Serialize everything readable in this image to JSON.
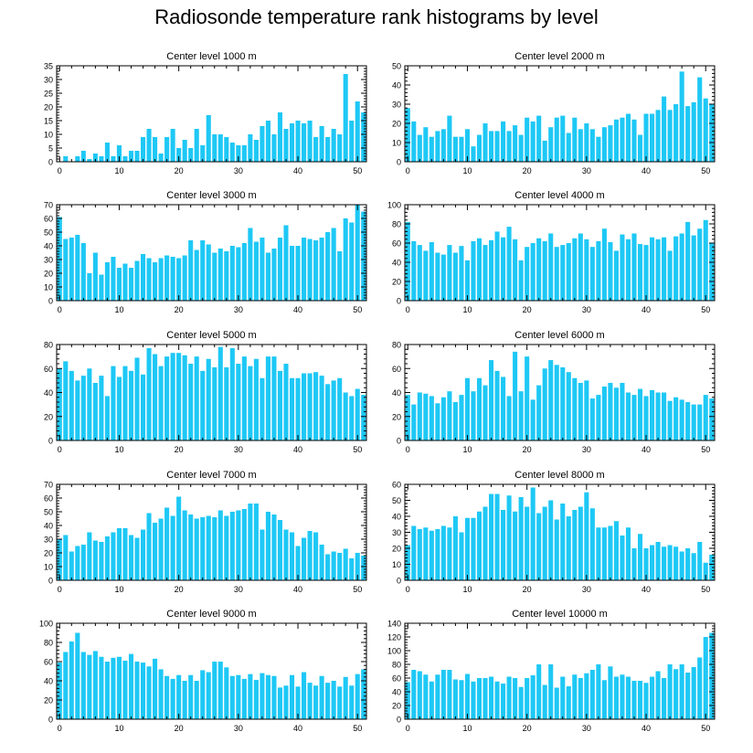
{
  "title": "Radiosonde temperature rank histograms by level",
  "colors": {
    "bar": "#1EC8F5",
    "axis": "#000000"
  },
  "chart_data": [
    {
      "type": "bar",
      "title": "Center level 1000 m",
      "ylim": [
        0,
        35
      ],
      "yticks": [
        0,
        5,
        10,
        15,
        20,
        25,
        30,
        35
      ],
      "xlim": [
        -0.5,
        51.5
      ],
      "xticks": [
        0,
        10,
        20,
        30,
        40,
        50
      ],
      "values": [
        0,
        2,
        0,
        2,
        4,
        1,
        3,
        2,
        7,
        2,
        6,
        2,
        4,
        4,
        9,
        12,
        9,
        3,
        9,
        12,
        5,
        8,
        5,
        12,
        6,
        17,
        10,
        10,
        9,
        7,
        6,
        6,
        10,
        8,
        13,
        15,
        10,
        18,
        12,
        14,
        15,
        14,
        15,
        9,
        13,
        9,
        12,
        10,
        32,
        15,
        22,
        18
      ]
    },
    {
      "type": "bar",
      "title": "Center level 2000 m",
      "ylim": [
        0,
        50
      ],
      "yticks": [
        0,
        10,
        20,
        30,
        40,
        50
      ],
      "xlim": [
        -0.5,
        51.5
      ],
      "xticks": [
        0,
        10,
        20,
        30,
        40,
        50
      ],
      "values": [
        28,
        21,
        14,
        18,
        13,
        16,
        17,
        24,
        13,
        13,
        17,
        8,
        14,
        20,
        16,
        16,
        21,
        16,
        19,
        14,
        23,
        21,
        24,
        11,
        18,
        23,
        24,
        15,
        23,
        17,
        20,
        17,
        13,
        18,
        19,
        22,
        23,
        25,
        22,
        14,
        25,
        25,
        27,
        34,
        27,
        30,
        47,
        29,
        31,
        44,
        33,
        30
      ]
    },
    {
      "type": "bar",
      "title": "Center level 3000 m",
      "ylim": [
        0,
        70
      ],
      "yticks": [
        0,
        10,
        20,
        30,
        40,
        50,
        60,
        70
      ],
      "xlim": [
        -0.5,
        51.5
      ],
      "xticks": [
        0,
        10,
        20,
        30,
        40,
        50
      ],
      "values": [
        61,
        45,
        46,
        48,
        42,
        20,
        35,
        19,
        28,
        32,
        24,
        27,
        24,
        29,
        34,
        31,
        28,
        31,
        33,
        32,
        31,
        33,
        44,
        37,
        44,
        41,
        35,
        38,
        36,
        40,
        39,
        42,
        53,
        43,
        46,
        35,
        38,
        46,
        55,
        40,
        40,
        46,
        45,
        44,
        46,
        50,
        53,
        36,
        60,
        57,
        70,
        65
      ]
    },
    {
      "type": "bar",
      "title": "Center level 4000 m",
      "ylim": [
        0,
        100
      ],
      "yticks": [
        0,
        20,
        40,
        60,
        80,
        100
      ],
      "xlim": [
        -0.5,
        51.5
      ],
      "xticks": [
        0,
        10,
        20,
        30,
        40,
        50
      ],
      "values": [
        82,
        62,
        58,
        52,
        61,
        50,
        48,
        58,
        50,
        57,
        42,
        62,
        65,
        58,
        63,
        72,
        66,
        77,
        64,
        42,
        56,
        60,
        65,
        62,
        70,
        56,
        58,
        60,
        65,
        70,
        64,
        56,
        62,
        75,
        61,
        52,
        69,
        64,
        70,
        59,
        58,
        66,
        64,
        66,
        52,
        67,
        70,
        82,
        68,
        75,
        84,
        60
      ]
    },
    {
      "type": "bar",
      "title": "Center level 5000 m",
      "ylim": [
        0,
        80
      ],
      "yticks": [
        0,
        20,
        40,
        60,
        80
      ],
      "xlim": [
        -0.5,
        51.5
      ],
      "xticks": [
        0,
        10,
        20,
        30,
        40,
        50
      ],
      "values": [
        60,
        66,
        58,
        50,
        54,
        60,
        48,
        54,
        37,
        62,
        53,
        62,
        58,
        69,
        55,
        77,
        72,
        62,
        70,
        73,
        73,
        71,
        64,
        70,
        58,
        68,
        61,
        78,
        61,
        77,
        64,
        70,
        62,
        68,
        52,
        70,
        70,
        58,
        64,
        52,
        52,
        56,
        56,
        57,
        54,
        47,
        50,
        52,
        40,
        37,
        43,
        38
      ]
    },
    {
      "type": "bar",
      "title": "Center level 6000 m",
      "ylim": [
        0,
        80
      ],
      "yticks": [
        0,
        20,
        40,
        60,
        80
      ],
      "xlim": [
        -0.5,
        51.5
      ],
      "xticks": [
        0,
        10,
        20,
        30,
        40,
        50
      ],
      "values": [
        38,
        30,
        40,
        39,
        37,
        31,
        36,
        41,
        32,
        38,
        52,
        41,
        52,
        46,
        67,
        58,
        53,
        37,
        74,
        41,
        70,
        34,
        46,
        60,
        67,
        63,
        61,
        57,
        52,
        48,
        50,
        35,
        38,
        45,
        48,
        44,
        48,
        40,
        38,
        43,
        37,
        42,
        40,
        40,
        33,
        36,
        34,
        32,
        30,
        30,
        38,
        35
      ]
    },
    {
      "type": "bar",
      "title": "Center level 7000 m",
      "ylim": [
        0,
        70
      ],
      "yticks": [
        0,
        10,
        20,
        30,
        40,
        50,
        60,
        70
      ],
      "xlim": [
        -0.5,
        51.5
      ],
      "xticks": [
        0,
        10,
        20,
        30,
        40,
        50
      ],
      "values": [
        30,
        33,
        21,
        25,
        26,
        35,
        29,
        28,
        32,
        35,
        38,
        38,
        33,
        31,
        37,
        49,
        42,
        45,
        53,
        47,
        61,
        51,
        48,
        45,
        46,
        47,
        46,
        51,
        47,
        50,
        51,
        52,
        56,
        56,
        37,
        50,
        48,
        44,
        37,
        35,
        25,
        31,
        36,
        35,
        26,
        19,
        21,
        20,
        23,
        16,
        20,
        18
      ]
    },
    {
      "type": "bar",
      "title": "Center level 8000 m",
      "ylim": [
        0,
        60
      ],
      "yticks": [
        0,
        10,
        20,
        30,
        40,
        50,
        60
      ],
      "xlim": [
        -0.5,
        51.5
      ],
      "xticks": [
        0,
        10,
        20,
        30,
        40,
        50
      ],
      "values": [
        22,
        34,
        32,
        33,
        31,
        32,
        34,
        33,
        40,
        30,
        39,
        39,
        43,
        46,
        54,
        54,
        44,
        53,
        43,
        52,
        46,
        58,
        42,
        46,
        50,
        38,
        48,
        40,
        44,
        46,
        55,
        45,
        33,
        33,
        34,
        37,
        28,
        33,
        20,
        29,
        20,
        22,
        24,
        21,
        22,
        21,
        18,
        20,
        17,
        24,
        11,
        16
      ]
    },
    {
      "type": "bar",
      "title": "Center level 9000 m",
      "ylim": [
        0,
        100
      ],
      "yticks": [
        0,
        20,
        40,
        60,
        80,
        100
      ],
      "xlim": [
        -0.5,
        51.5
      ],
      "xticks": [
        0,
        10,
        20,
        30,
        40,
        50
      ],
      "values": [
        59,
        70,
        81,
        90,
        70,
        67,
        71,
        65,
        60,
        64,
        65,
        61,
        68,
        60,
        59,
        55,
        63,
        52,
        45,
        42,
        46,
        40,
        46,
        40,
        51,
        49,
        60,
        60,
        54,
        45,
        46,
        42,
        47,
        41,
        48,
        46,
        45,
        33,
        35,
        46,
        34,
        49,
        38,
        35,
        45,
        38,
        40,
        34,
        44,
        35,
        47,
        52
      ]
    },
    {
      "type": "bar",
      "title": "Center level 10000 m",
      "ylim": [
        0,
        140
      ],
      "yticks": [
        0,
        20,
        40,
        60,
        80,
        100,
        120,
        140
      ],
      "xlim": [
        -0.5,
        51.5
      ],
      "xticks": [
        0,
        10,
        20,
        30,
        40,
        50
      ],
      "values": [
        54,
        72,
        70,
        65,
        55,
        65,
        72,
        72,
        58,
        57,
        66,
        55,
        60,
        60,
        62,
        55,
        52,
        62,
        60,
        47,
        60,
        64,
        80,
        50,
        80,
        46,
        62,
        48,
        65,
        60,
        67,
        72,
        80,
        57,
        77,
        62,
        65,
        62,
        56,
        56,
        53,
        62,
        70,
        60,
        80,
        73,
        80,
        68,
        76,
        90,
        120,
        126
      ]
    }
  ]
}
